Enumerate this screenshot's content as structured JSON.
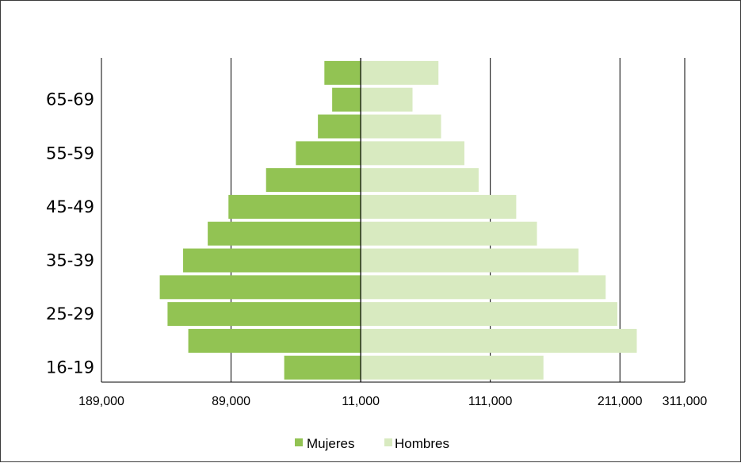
{
  "chart_data": {
    "type": "bar",
    "orientation": "horizontal",
    "layout": "population-pyramid",
    "age_labels": [
      {
        "label": "16-19",
        "row": 0
      },
      {
        "label": "25-29",
        "row": 2
      },
      {
        "label": "35-39",
        "row": 4
      },
      {
        "label": "45-49",
        "row": 6
      },
      {
        "label": "55-59",
        "row": 8
      },
      {
        "label": "65-69",
        "row": 10
      }
    ],
    "x_tick_labels": [
      "189,000",
      "89,000",
      "11,000",
      "111,000",
      "211,000",
      "311,000"
    ],
    "x_ticks_at": [
      -200000,
      -100000,
      0,
      100000,
      200000,
      250000
    ],
    "gridlines_at": [
      -100000,
      0,
      100000,
      200000
    ],
    "xlim": [
      -200000,
      250000
    ],
    "series": [
      {
        "name": "Mujeres",
        "color": "#92c353",
        "side": "left",
        "values": [
          59000,
          133000,
          149000,
          155000,
          137000,
          118000,
          102000,
          73000,
          50000,
          33000,
          22000,
          28000
        ]
      },
      {
        "name": "Hombres",
        "color": "#d8eac0",
        "side": "right",
        "values": [
          141000,
          213000,
          198000,
          189000,
          168000,
          136000,
          120000,
          91000,
          80000,
          62000,
          40000,
          60000
        ]
      }
    ],
    "legend": {
      "position": "bottom",
      "entries": [
        "Mujeres",
        "Hombres"
      ]
    },
    "grid": true
  }
}
